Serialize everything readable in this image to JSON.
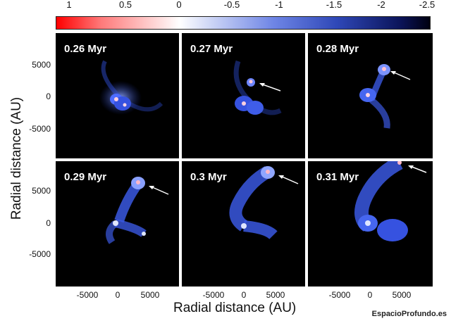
{
  "colorbar": {
    "ticks": [
      "1",
      "0.5",
      "0",
      "-0.5",
      "-1",
      "-1.5",
      "-2",
      "-2.5"
    ]
  },
  "panels": [
    {
      "label": "0.26 Myr"
    },
    {
      "label": "0.27 Myr"
    },
    {
      "label": "0.28 Myr"
    },
    {
      "label": "0.29 Myr"
    },
    {
      "label": "0.3 Myr"
    },
    {
      "label": "0.31 Myr"
    }
  ],
  "y_ticks": [
    "5000",
    "0",
    "-5000"
  ],
  "x_ticks": [
    "-5000",
    "0",
    "5000"
  ],
  "ylabel": "Radial distance (AU)",
  "xlabel": "Radial distance (AU)",
  "credit": "EspacioProfundo.es"
}
